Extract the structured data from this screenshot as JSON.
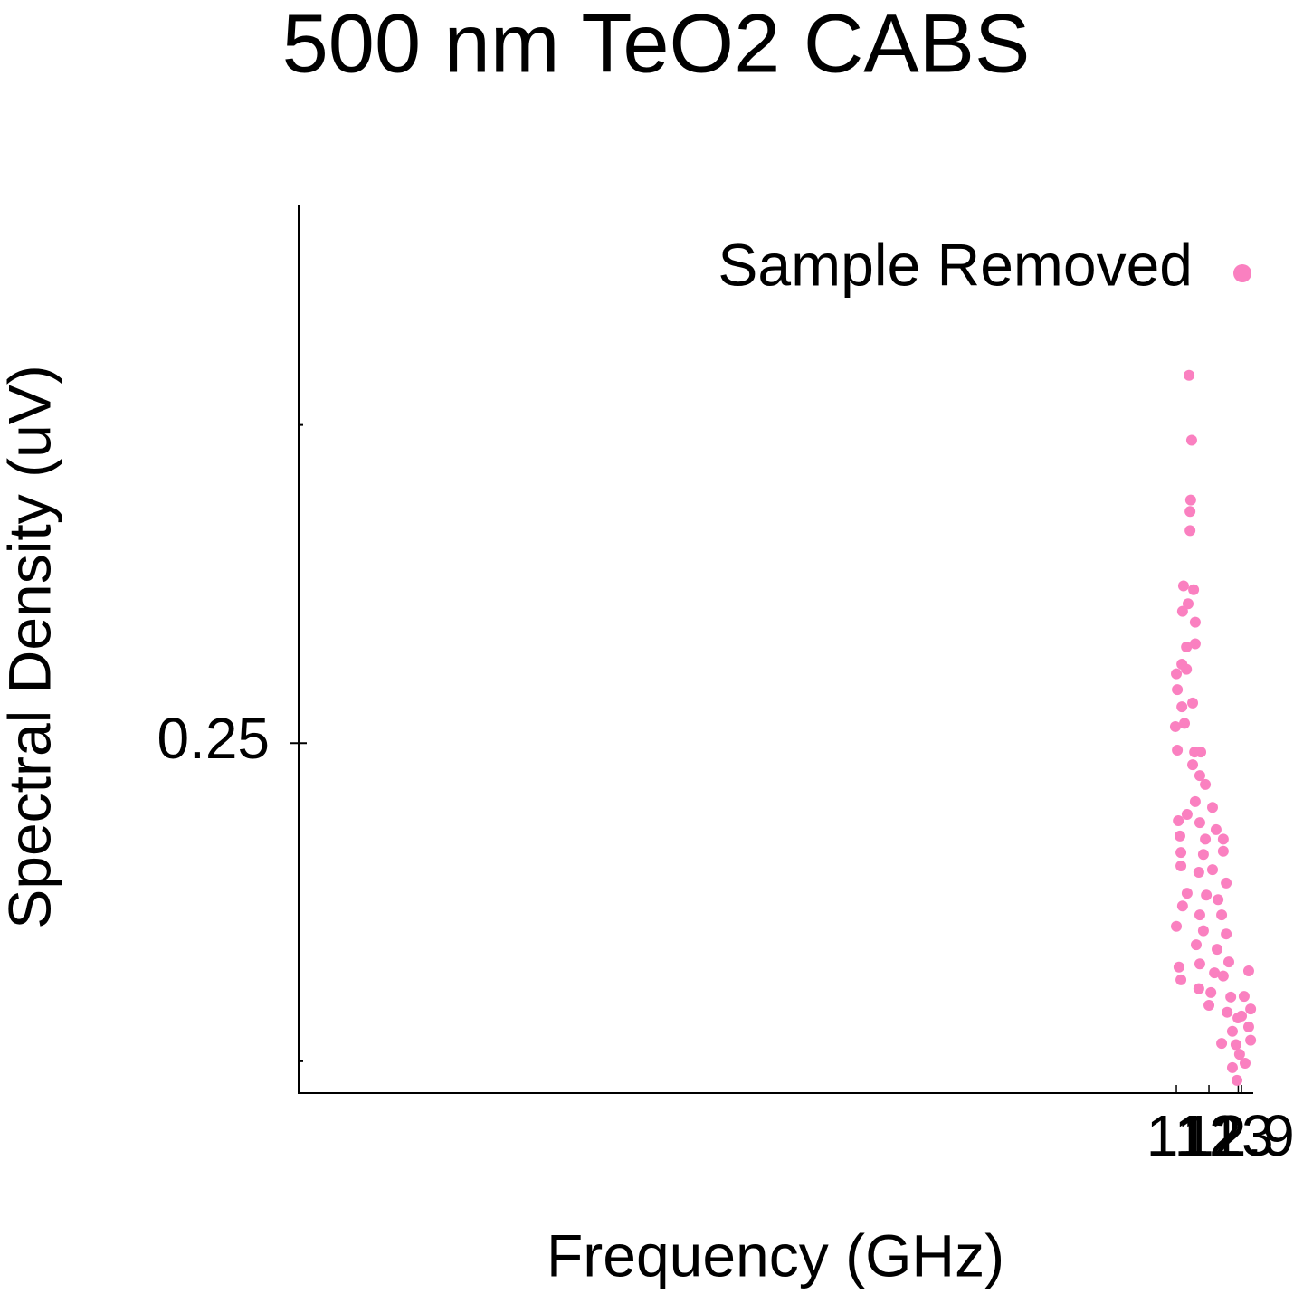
{
  "chart_data": {
    "type": "scatter",
    "title": "500 nm TeO2 CABS",
    "x_label": "Frequency (GHz)",
    "y_label": "Spectral Density (uV)",
    "xlim": [
      -15.94,
      13.36
    ],
    "ylim": [
      0.195,
      0.3345
    ],
    "xticks": [
      11,
      12,
      12.9,
      13
    ],
    "yticks": [
      0.25
    ],
    "yminor_ticks": [
      0.2,
      0.3
    ],
    "legend": "upper right",
    "series": [
      {
        "name": "Sample Removed",
        "color": "#fa80c0",
        "x": [
          11.39,
          11.47,
          11.44,
          11.42,
          11.42,
          11.22,
          11.53,
          11.36,
          11.19,
          11.58,
          11.31,
          11.58,
          11.17,
          11.31,
          11.0,
          11.03,
          11.17,
          11.5,
          11.25,
          10.97,
          11.03,
          11.56,
          11.75,
          11.5,
          11.72,
          11.89,
          11.58,
          12.11,
          11.33,
          11.06,
          11.72,
          12.22,
          11.11,
          11.89,
          12.44,
          11.14,
          11.83,
          12.44,
          11.14,
          11.69,
          12.11,
          12.53,
          11.33,
          11.92,
          12.28,
          11.19,
          11.72,
          12.39,
          11.0,
          11.83,
          12.53,
          11.61,
          12.25,
          11.08,
          11.72,
          12.61,
          12.17,
          13.22,
          11.14,
          12.44,
          11.69,
          12.06,
          12.67,
          13.08,
          12.0,
          12.56,
          13.28,
          12.89,
          13.22,
          12.72,
          12.39,
          13.28,
          12.94,
          12.72,
          13.11,
          12.86,
          13.0,
          12.83
        ],
        "values": [
          0.3078,
          0.2976,
          0.2882,
          0.2864,
          0.2834,
          0.2747,
          0.2741,
          0.2719,
          0.2707,
          0.269,
          0.2651,
          0.2656,
          0.2624,
          0.2616,
          0.2609,
          0.2584,
          0.2557,
          0.2563,
          0.2531,
          0.2526,
          0.2489,
          0.2486,
          0.2486,
          0.2466,
          0.2449,
          0.2435,
          0.2408,
          0.2399,
          0.2388,
          0.2378,
          0.2375,
          0.2364,
          0.2354,
          0.2349,
          0.2349,
          0.2328,
          0.2325,
          0.233,
          0.2307,
          0.2297,
          0.2301,
          0.228,
          0.2264,
          0.2261,
          0.2254,
          0.2244,
          0.223,
          0.223,
          0.2212,
          0.2205,
          0.22,
          0.2183,
          0.2176,
          0.2148,
          0.2153,
          0.2156,
          0.2139,
          0.2142,
          0.2128,
          0.2134,
          0.2114,
          0.2108,
          0.2101,
          0.2102,
          0.2088,
          0.2077,
          0.2082,
          0.2068,
          0.2054,
          0.2047,
          0.2028,
          0.2033,
          0.2011,
          0.199,
          0.1997,
          0.197,
          0.2071,
          0.2026
        ]
      }
    ]
  }
}
